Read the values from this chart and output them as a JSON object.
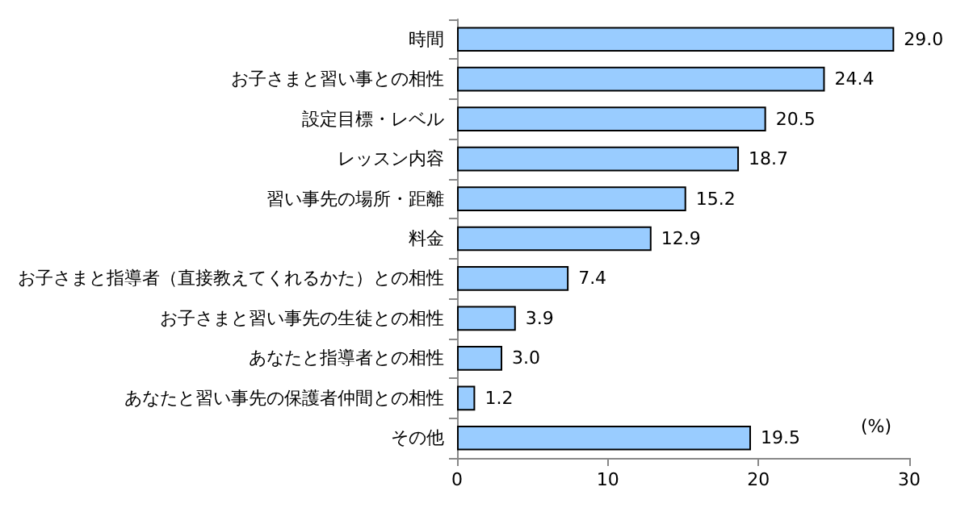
{
  "chart_data": {
    "type": "bar",
    "orientation": "horizontal",
    "xlabel": "(%)",
    "categories": [
      "時間",
      "お子さまと習い事との相性",
      "設定目標・レベル",
      "レッスン内容",
      "習い事先の場所・距離",
      "料金",
      "お子さまと指導者（直接教えてくれるかた）との相性",
      "お子さまと習い事先の生徒との相性",
      "あなたと指導者との相性",
      "あなたと習い事先の保護者仲間との相性",
      "その他"
    ],
    "values": [
      29.0,
      24.4,
      20.5,
      18.7,
      15.2,
      12.9,
      7.4,
      3.9,
      3.0,
      1.2,
      19.5
    ],
    "value_labels": [
      "29.0",
      "24.4",
      "20.5",
      "18.7",
      "15.2",
      "12.9",
      "7.4",
      "3.9",
      "3.0",
      "1.2",
      "19.5"
    ],
    "color": "#99ccff",
    "xlim": [
      0,
      30
    ],
    "xticks": [
      0,
      10,
      20,
      30
    ],
    "grid": false
  }
}
